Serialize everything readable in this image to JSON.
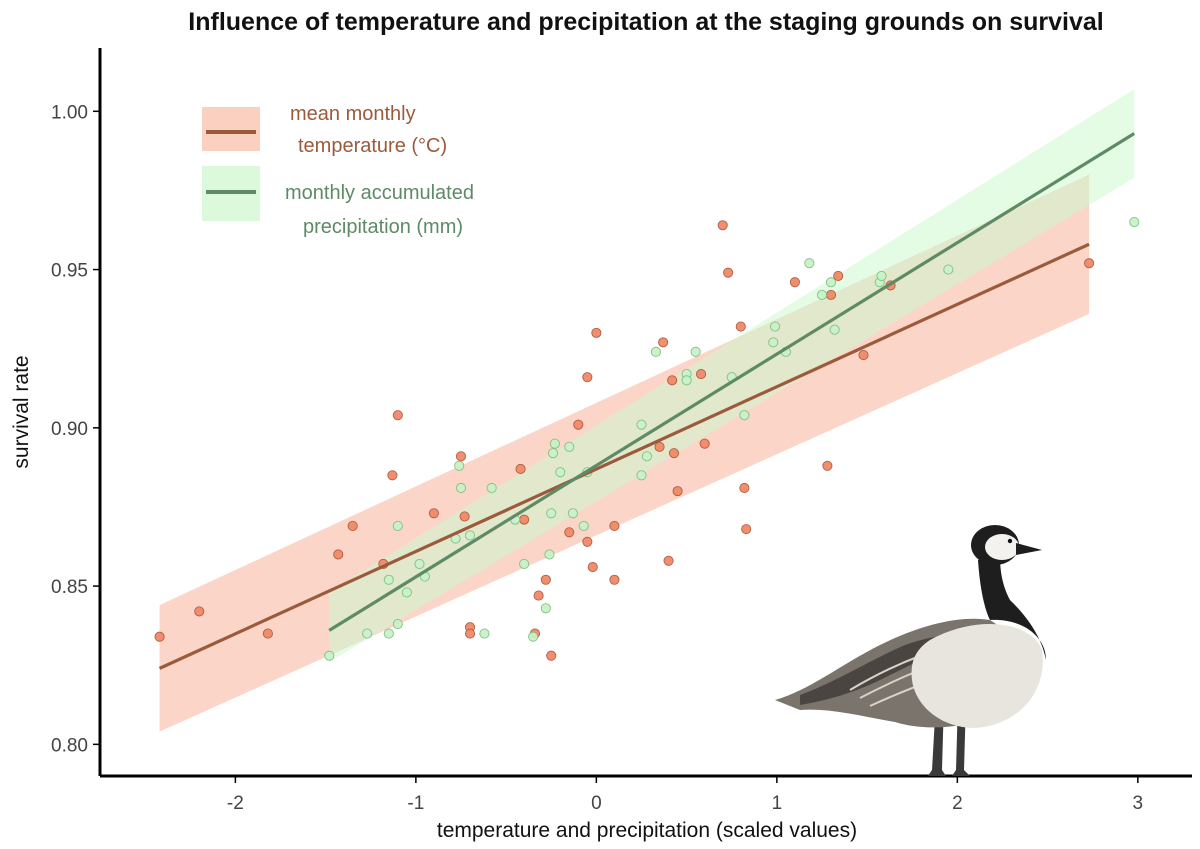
{
  "colors": {
    "temperature": "#9c5a3c",
    "temperature_point": "#f08a68",
    "temperature_band": "#f9c4b0",
    "precipitation": "#5e8a65",
    "precipitation_point": "#c9f2c9",
    "precipitation_band": "#cdf7cd"
  },
  "chart_data": {
    "type": "scatter",
    "title": "Influence of temperature and precipitation at the staging grounds on survival",
    "xlabel": "temperature and precipitation (scaled values)",
    "ylabel": "survival rate",
    "xlim": [
      -2.75,
      3.3
    ],
    "ylim": [
      0.79,
      1.02
    ],
    "x_ticks": [
      -2,
      -1,
      0,
      1,
      2,
      3
    ],
    "y_ticks": [
      0.8,
      0.85,
      0.9,
      0.95,
      1.0
    ],
    "y_tick_labels": [
      "0.80",
      "0.85",
      "0.90",
      "0.95",
      "1.00"
    ],
    "grid": false,
    "legend_position": "top-left",
    "series": [
      {
        "name": "mean monthly temperature (°C)",
        "legend_lines": [
          "mean monthly",
          "temperature (°C)"
        ],
        "fit": {
          "x": [
            -2.42,
            2.73
          ],
          "y": [
            0.824,
            0.958
          ]
        },
        "band": {
          "x": [
            -2.42,
            2.73
          ],
          "upper": [
            0.844,
            0.98
          ],
          "lower": [
            0.804,
            0.936
          ]
        },
        "points": [
          [
            -2.42,
            0.834
          ],
          [
            -2.2,
            0.842
          ],
          [
            -1.82,
            0.835
          ],
          [
            -1.43,
            0.86
          ],
          [
            -1.35,
            0.869
          ],
          [
            -1.18,
            0.857
          ],
          [
            -1.13,
            0.885
          ],
          [
            -1.1,
            0.904
          ],
          [
            -0.9,
            0.873
          ],
          [
            -0.75,
            0.891
          ],
          [
            -0.73,
            0.872
          ],
          [
            -0.7,
            0.837
          ],
          [
            -0.7,
            0.835
          ],
          [
            -0.42,
            0.887
          ],
          [
            -0.4,
            0.871
          ],
          [
            -0.34,
            0.835
          ],
          [
            -0.32,
            0.847
          ],
          [
            -0.28,
            0.852
          ],
          [
            -0.25,
            0.828
          ],
          [
            -0.15,
            0.867
          ],
          [
            -0.1,
            0.901
          ],
          [
            -0.05,
            0.864
          ],
          [
            -0.05,
            0.916
          ],
          [
            -0.02,
            0.856
          ],
          [
            0.0,
            0.93
          ],
          [
            0.1,
            0.869
          ],
          [
            0.1,
            0.852
          ],
          [
            0.35,
            0.894
          ],
          [
            0.37,
            0.927
          ],
          [
            0.4,
            0.858
          ],
          [
            0.42,
            0.915
          ],
          [
            0.43,
            0.892
          ],
          [
            0.45,
            0.88
          ],
          [
            0.58,
            0.917
          ],
          [
            0.6,
            0.895
          ],
          [
            0.7,
            0.964
          ],
          [
            0.73,
            0.949
          ],
          [
            0.8,
            0.932
          ],
          [
            0.82,
            0.881
          ],
          [
            0.83,
            0.868
          ],
          [
            1.1,
            0.946
          ],
          [
            1.28,
            0.888
          ],
          [
            1.3,
            0.942
          ],
          [
            1.34,
            0.948
          ],
          [
            1.48,
            0.923
          ],
          [
            1.63,
            0.945
          ],
          [
            2.73,
            0.952
          ]
        ]
      },
      {
        "name": "monthly accumulated precipitation (mm)",
        "legend_lines": [
          "monthly accumulated",
          "precipitation (mm)"
        ],
        "fit": {
          "x": [
            -1.48,
            2.98
          ],
          "y": [
            0.836,
            0.993
          ]
        },
        "band": {
          "x": [
            -1.48,
            2.98
          ],
          "upper": [
            0.848,
            1.007
          ],
          "lower": [
            0.826,
            0.979
          ]
        },
        "points": [
          [
            -1.48,
            0.828
          ],
          [
            -1.27,
            0.835
          ],
          [
            -1.15,
            0.835
          ],
          [
            -1.15,
            0.852
          ],
          [
            -1.1,
            0.838
          ],
          [
            -1.1,
            0.869
          ],
          [
            -1.05,
            0.848
          ],
          [
            -0.98,
            0.857
          ],
          [
            -0.95,
            0.853
          ],
          [
            -0.78,
            0.865
          ],
          [
            -0.76,
            0.888
          ],
          [
            -0.75,
            0.881
          ],
          [
            -0.7,
            0.866
          ],
          [
            -0.62,
            0.835
          ],
          [
            -0.58,
            0.881
          ],
          [
            -0.45,
            0.871
          ],
          [
            -0.4,
            0.857
          ],
          [
            -0.35,
            0.834
          ],
          [
            -0.28,
            0.843
          ],
          [
            -0.26,
            0.86
          ],
          [
            -0.25,
            0.873
          ],
          [
            -0.24,
            0.892
          ],
          [
            -0.23,
            0.895
          ],
          [
            -0.2,
            0.886
          ],
          [
            -0.15,
            0.894
          ],
          [
            -0.13,
            0.873
          ],
          [
            -0.07,
            0.869
          ],
          [
            -0.05,
            0.886
          ],
          [
            0.25,
            0.885
          ],
          [
            0.25,
            0.901
          ],
          [
            0.28,
            0.891
          ],
          [
            0.33,
            0.924
          ],
          [
            0.5,
            0.917
          ],
          [
            0.5,
            0.915
          ],
          [
            0.55,
            0.924
          ],
          [
            0.75,
            0.916
          ],
          [
            0.82,
            0.904
          ],
          [
            0.98,
            0.927
          ],
          [
            0.99,
            0.932
          ],
          [
            1.05,
            0.924
          ],
          [
            1.18,
            0.952
          ],
          [
            1.25,
            0.942
          ],
          [
            1.3,
            0.946
          ],
          [
            1.32,
            0.931
          ],
          [
            1.57,
            0.946
          ],
          [
            1.58,
            0.948
          ],
          [
            1.95,
            0.95
          ],
          [
            2.98,
            0.965
          ]
        ]
      }
    ]
  }
}
